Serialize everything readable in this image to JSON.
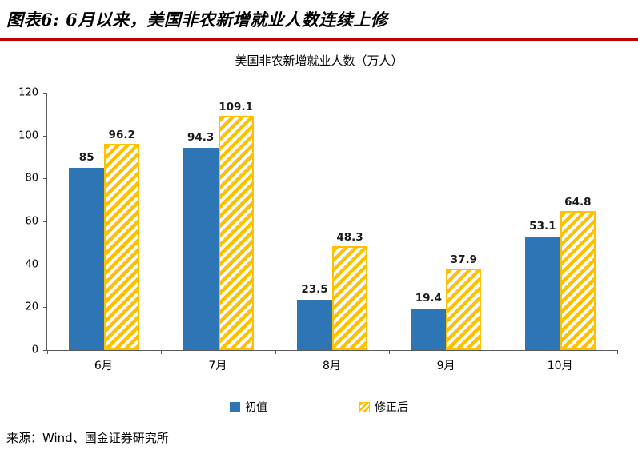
{
  "header": {
    "title": "图表6: 6月以来，美国非农新增就业人数连续上修",
    "underline_color": "#C00000"
  },
  "chart_data": {
    "type": "bar",
    "title": "美国非农新增就业人数（万人）",
    "categories": [
      "6月",
      "7月",
      "8月",
      "9月",
      "10月"
    ],
    "series": [
      {
        "name": "初值",
        "values": [
          85,
          94.3,
          23.5,
          19.4,
          53.1
        ],
        "color": "#2E75B6",
        "pattern": "solid"
      },
      {
        "name": "修正后",
        "values": [
          96.2,
          109.1,
          48.3,
          37.9,
          64.8
        ],
        "color": "#FFC000",
        "pattern": "hatched"
      }
    ],
    "ylim": [
      0,
      120
    ],
    "ytick_step": 20,
    "grid": false,
    "legend_position": "bottom"
  },
  "footer": {
    "source": "来源：Wind、国金证券研究所"
  }
}
